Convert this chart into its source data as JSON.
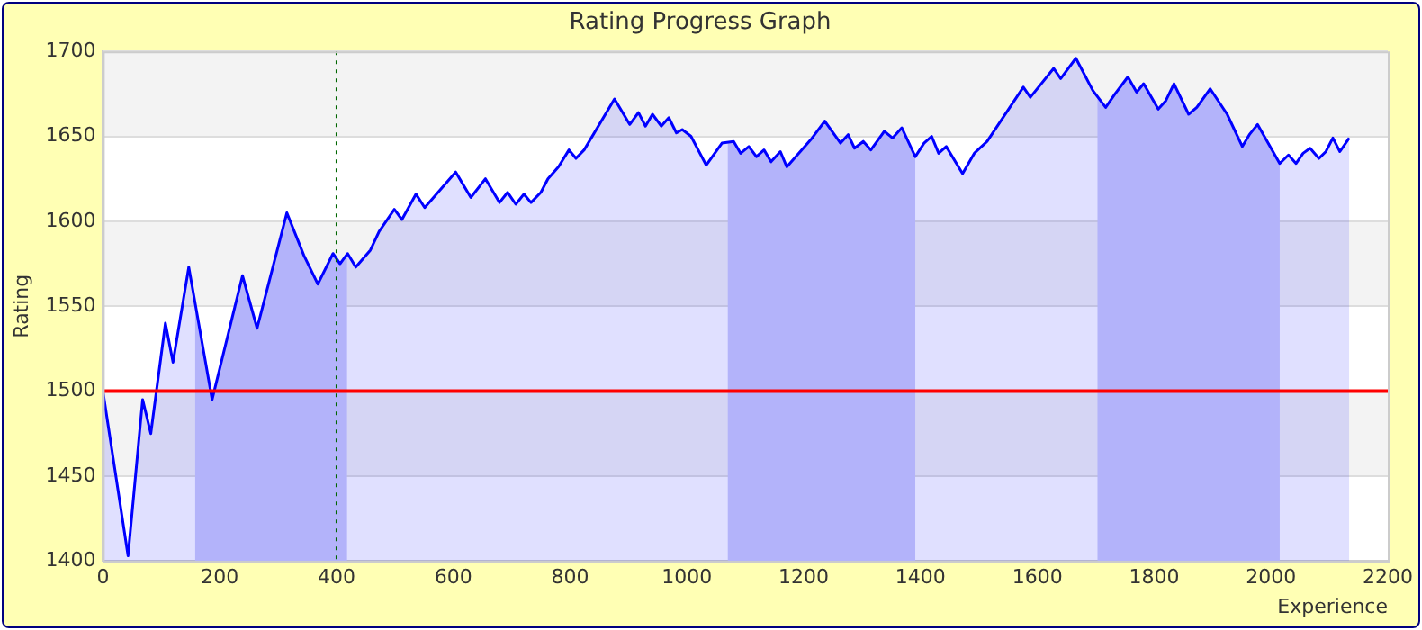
{
  "chart_data": {
    "type": "area",
    "title": "Rating Progress Graph",
    "xlabel": "Experience",
    "ylabel": "Rating",
    "xlim": [
      0,
      2200
    ],
    "xticks": [
      0,
      200,
      400,
      600,
      800,
      1000,
      1200,
      1400,
      1600,
      1800,
      2000,
      2200
    ],
    "ylim": [
      1400,
      1700
    ],
    "yticks": [
      1400,
      1450,
      1500,
      1550,
      1600,
      1650,
      1700
    ],
    "grid": "y",
    "legend": false,
    "series": [
      {
        "color": "#0000ff",
        "x": [
          0,
          43,
          68,
          82,
          107,
          120,
          147,
          187,
          239,
          264,
          315,
          344,
          368,
          394,
          406,
          419,
          433,
          458,
          473,
          499,
          512,
          536,
          551,
          604,
          630,
          655,
          679,
          693,
          707,
          721,
          733,
          750,
          762,
          780,
          798,
          810,
          824,
          876,
          902,
          917,
          929,
          941,
          956,
          969,
          982,
          992,
          1007,
          1033,
          1060,
          1080,
          1092,
          1106,
          1119,
          1132,
          1144,
          1160,
          1171,
          1212,
          1236,
          1263,
          1276,
          1287,
          1302,
          1315,
          1338,
          1352,
          1368,
          1391,
          1406,
          1419,
          1431,
          1444,
          1472,
          1492,
          1514,
          1576,
          1588,
          1628,
          1640,
          1666,
          1695,
          1717,
          1733,
          1755,
          1770,
          1782,
          1807,
          1820,
          1834,
          1859,
          1873,
          1896,
          1925,
          1951,
          1963,
          1977,
          2015,
          2030,
          2043,
          2055,
          2067,
          2082,
          2094,
          2106,
          2118,
          2134
        ],
        "values": [
          1500,
          1403,
          1495,
          1475,
          1540,
          1517,
          1573,
          1495,
          1568,
          1537,
          1605,
          1580,
          1563,
          1581,
          1575,
          1581,
          1573,
          1583,
          1594,
          1607,
          1601,
          1616,
          1608,
          1629,
          1614,
          1625,
          1611,
          1617,
          1610,
          1616,
          1611,
          1617,
          1625,
          1632,
          1642,
          1637,
          1642,
          1672,
          1657,
          1664,
          1656,
          1663,
          1656,
          1661,
          1652,
          1654,
          1650,
          1633,
          1646,
          1647,
          1640,
          1644,
          1638,
          1642,
          1635,
          1641,
          1632,
          1648,
          1659,
          1646,
          1651,
          1643,
          1647,
          1642,
          1653,
          1649,
          1655,
          1638,
          1646,
          1650,
          1640,
          1644,
          1628,
          1640,
          1647,
          1679,
          1673,
          1690,
          1684,
          1696,
          1677,
          1667,
          1675,
          1685,
          1676,
          1681,
          1666,
          1671,
          1681,
          1663,
          1667,
          1678,
          1663,
          1644,
          1651,
          1657,
          1634,
          1639,
          1634,
          1640,
          1643,
          1637,
          1641,
          1649,
          1641,
          1649
        ]
      }
    ],
    "bands": [
      {
        "axis": "x",
        "from": 158,
        "to": 418,
        "color": "#ccccfa"
      },
      {
        "axis": "x",
        "from": 1070,
        "to": 1391,
        "color": "#ccccfa"
      },
      {
        "axis": "x",
        "from": 1703,
        "to": 2015,
        "color": "#ccccfa"
      }
    ],
    "ref_lines": [
      {
        "axis": "y",
        "value": 1500,
        "color": "#ff0000",
        "line_style": "solid"
      },
      {
        "axis": "x",
        "value": 400,
        "color": "#006600",
        "line_style": "dotted"
      }
    ]
  }
}
